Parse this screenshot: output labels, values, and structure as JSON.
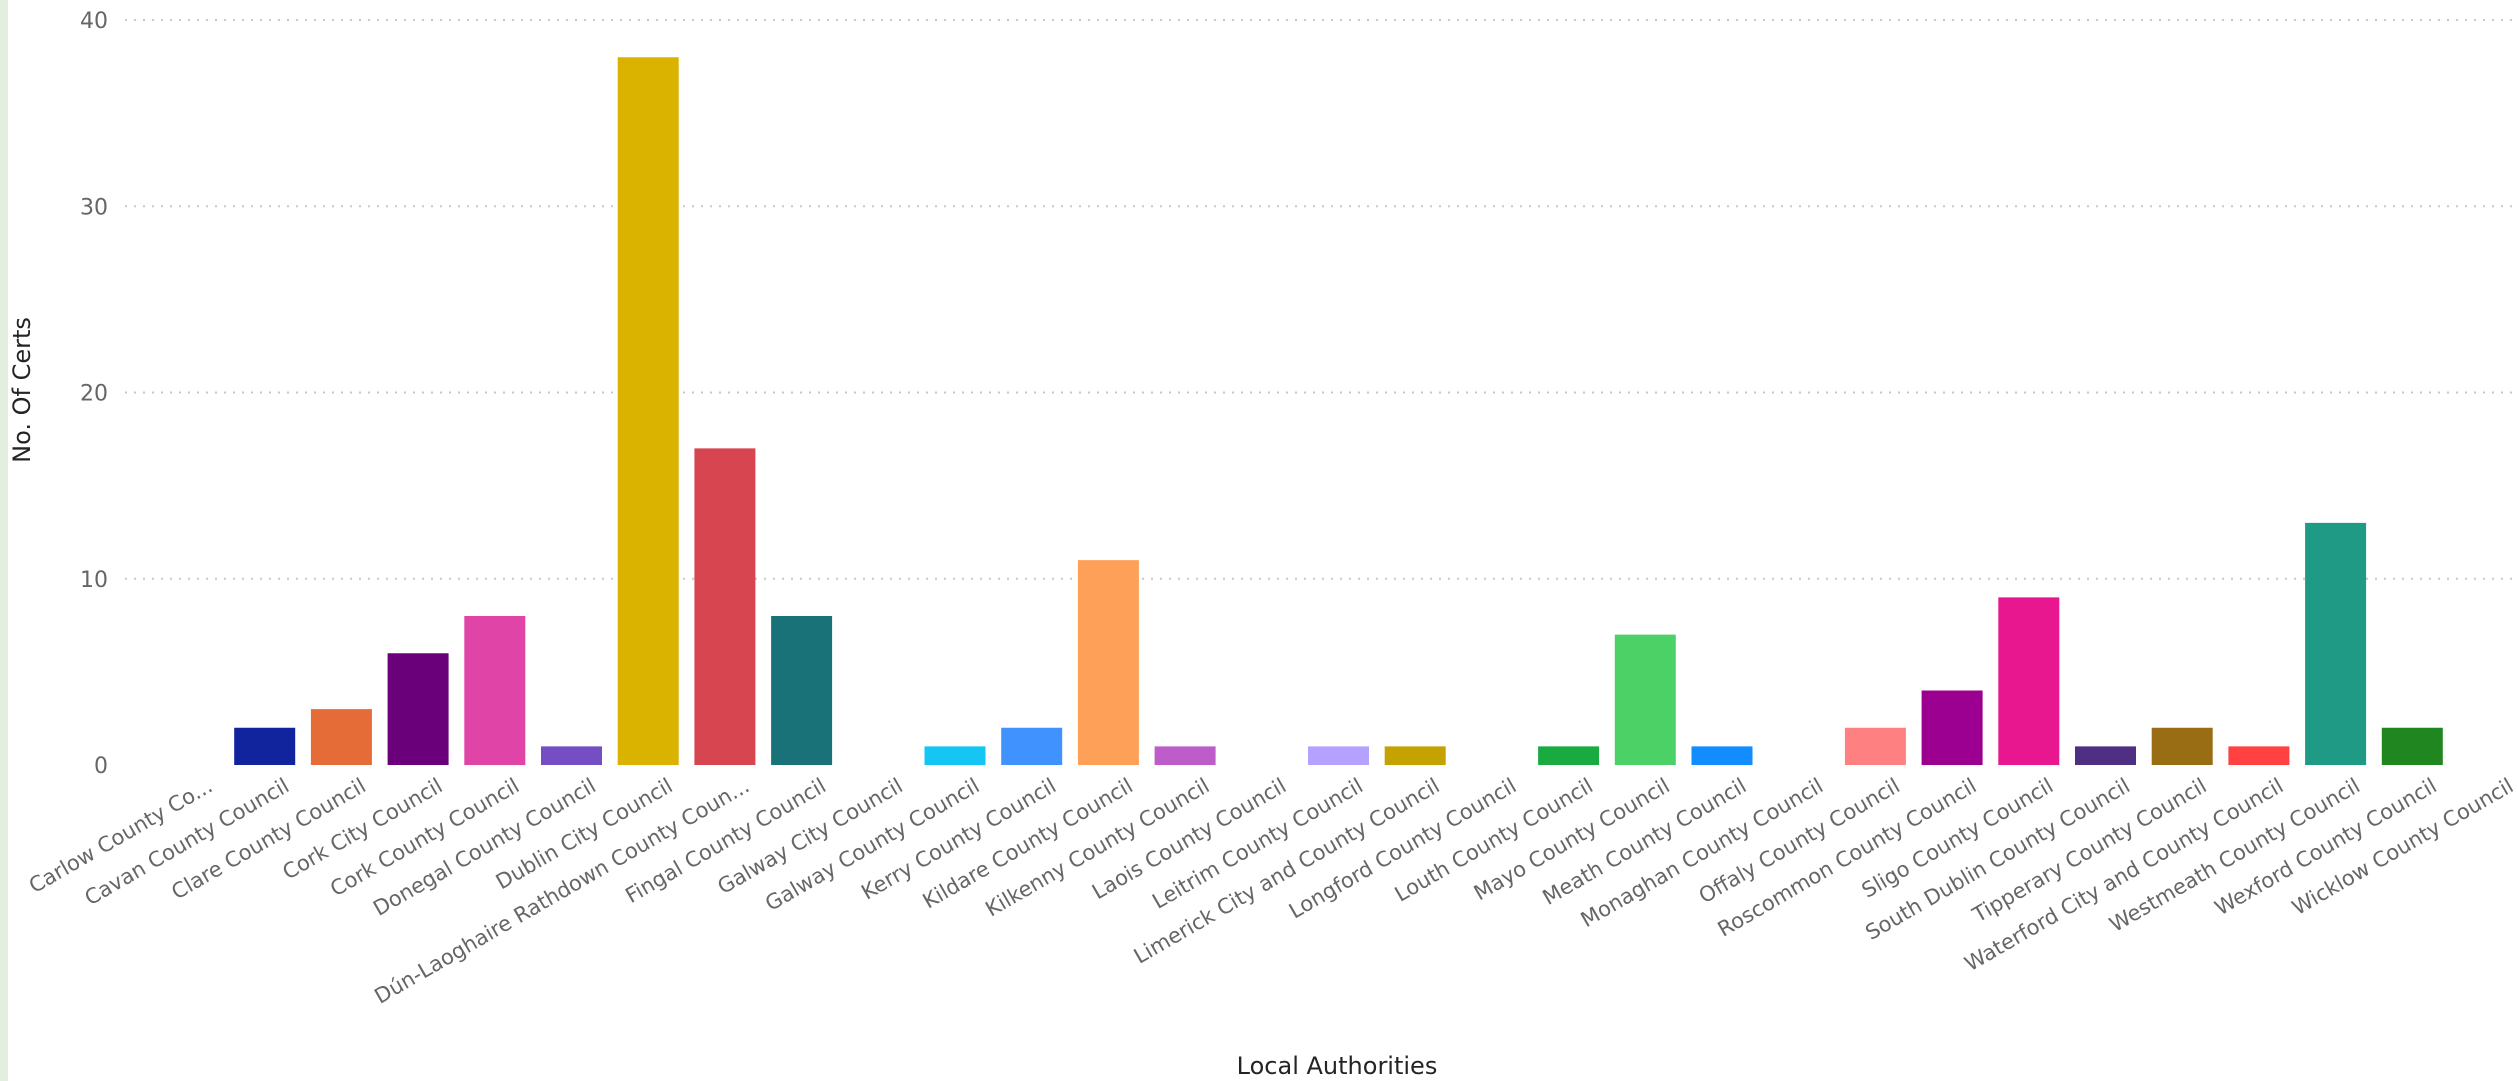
{
  "chart_data": {
    "type": "bar",
    "xlabel": "Local Authorities",
    "ylabel": "No. Of Certs",
    "ylim": [
      0,
      40
    ],
    "yticks": [
      0,
      10,
      20,
      30,
      40
    ],
    "grid": true,
    "categories": [
      "Carlow County Co...",
      "Cavan County Council",
      "Clare County Council",
      "Cork City Council",
      "Cork County Council",
      "Donegal County Council",
      "Dublin City Council",
      "Dún-Laoghaire Rathdown County Coun...",
      "Fingal County Council",
      "Galway City Council",
      "Galway County Council",
      "Kerry County Council",
      "Kildare County Council",
      "Kilkenny County Council",
      "Laois County Council",
      "Leitrim County Council",
      "Limerick City and County Council",
      "Longford County Council",
      "Louth County Council",
      "Mayo County Council",
      "Meath County Council",
      "Monaghan County Council",
      "Offaly County Council",
      "Roscommon County Council",
      "Sligo County Council",
      "South Dublin County Council",
      "Tipperary County Council",
      "Waterford City and County Council",
      "Westmeath County Council",
      "Wexford County Council",
      "Wicklow County Council"
    ],
    "values": [
      0,
      2,
      3,
      6,
      8,
      1,
      38,
      17,
      8,
      0,
      1,
      2,
      11,
      1,
      0,
      1,
      1,
      0,
      1,
      7,
      1,
      0,
      2,
      4,
      9,
      1,
      2,
      1,
      13,
      2,
      0
    ],
    "colors": [
      "#12239E",
      "#12239E",
      "#E66C37",
      "#6B007B",
      "#E044A7",
      "#744EC2",
      "#D9B300",
      "#D64550",
      "#197278",
      "#1AAB40",
      "#15C6F4",
      "#4092FF",
      "#FFA058",
      "#BE5DC9",
      "#12239E",
      "#B5A1FF",
      "#C4A200",
      "#FF8080",
      "#1AAB40",
      "#4CD166",
      "#118DFF",
      "#4668C5",
      "#FF8080",
      "#9C0090",
      "#E8168F",
      "#4F2F84",
      "#996D14",
      "#FF4141",
      "#1F9A85",
      "#208720",
      "#0E53A0"
    ]
  }
}
